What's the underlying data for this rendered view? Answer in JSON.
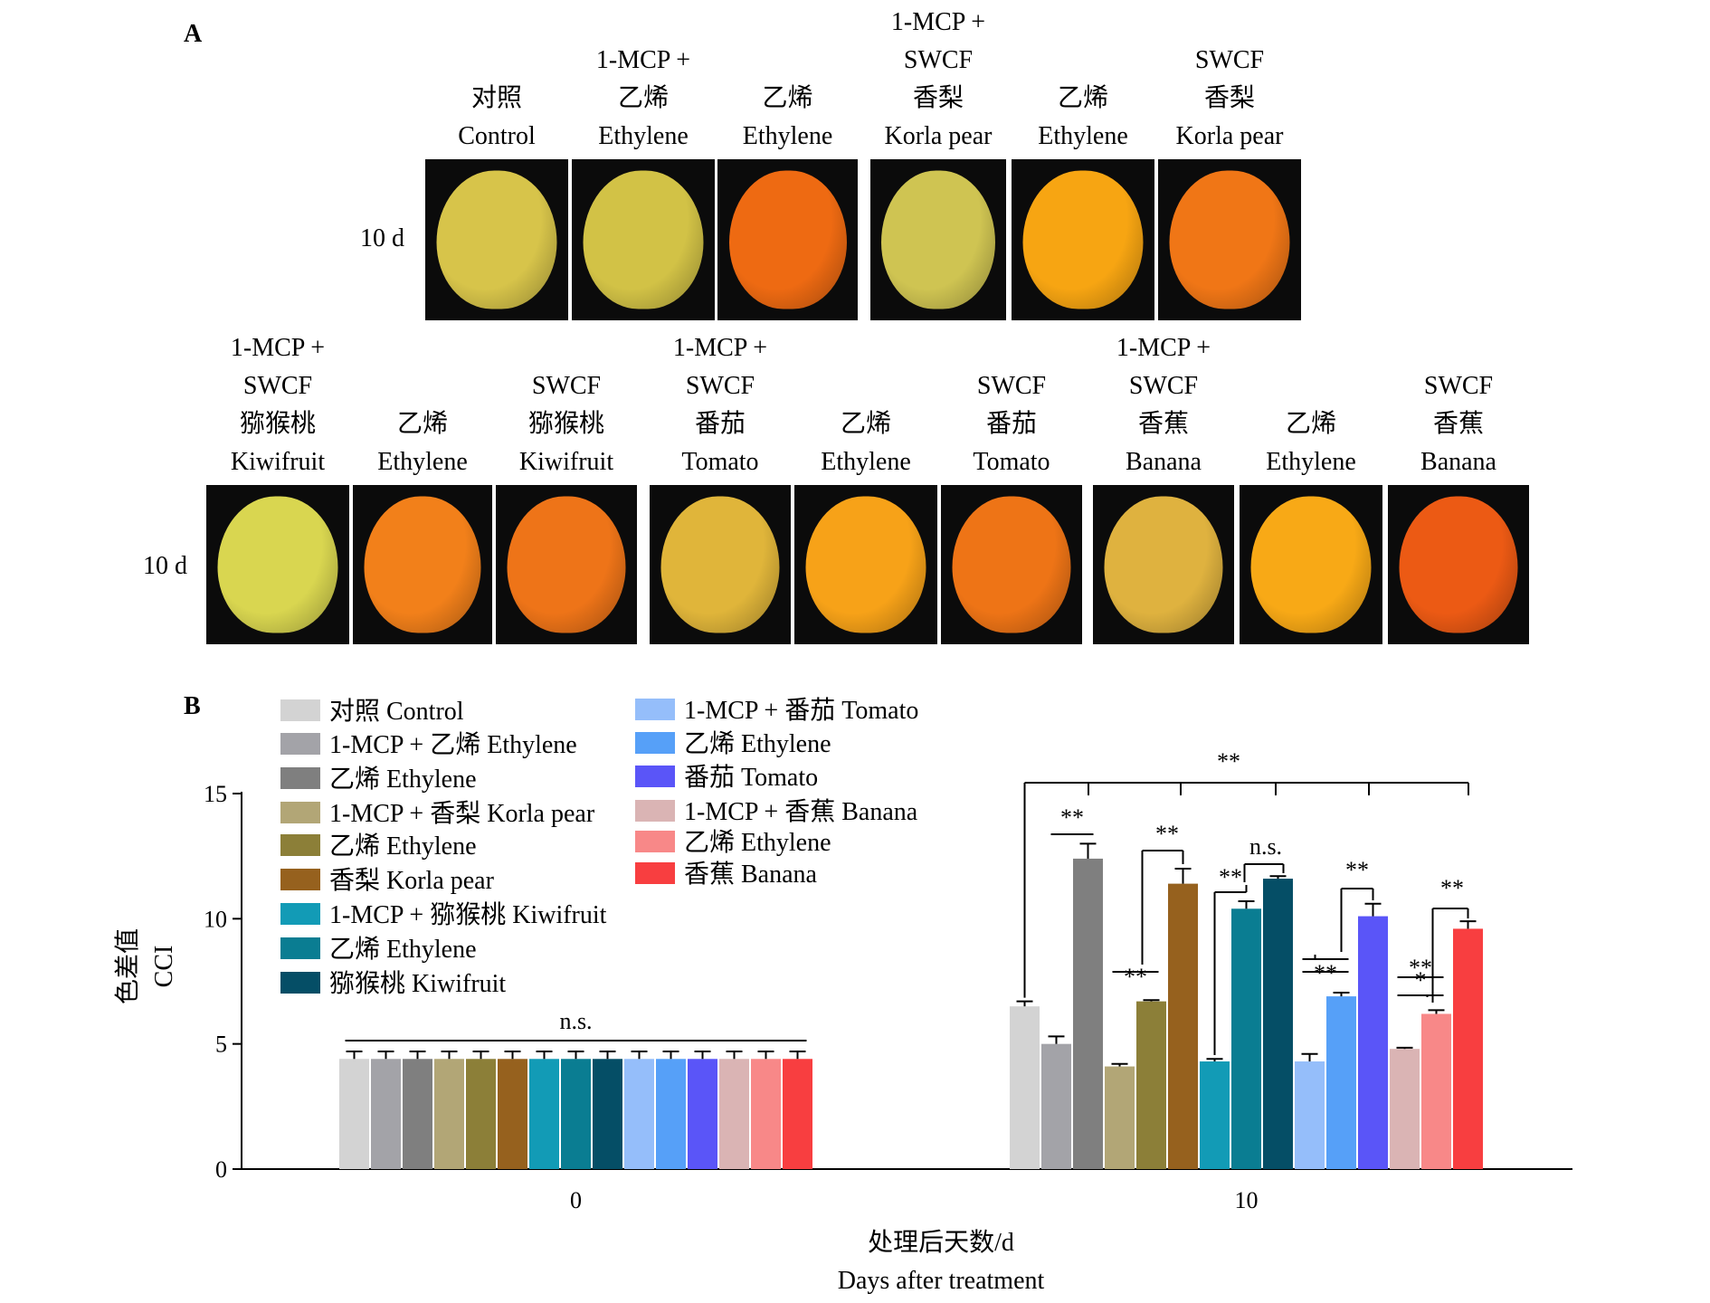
{
  "panel_a": {
    "letter": "A",
    "row1": {
      "day_label": "10 d",
      "photos": [
        {
          "lines": [
            "对照",
            "Control"
          ],
          "fruit_color": "#d7c44a"
        },
        {
          "lines": [
            "1-MCP +",
            "乙烯",
            "Ethylene"
          ],
          "fruit_color": "#d2c246"
        },
        {
          "lines": [
            "乙烯",
            "Ethylene"
          ],
          "fruit_color": "#ee6a12"
        },
        {
          "lines": [
            "1-MCP +",
            "SWCF",
            "香梨",
            "Korla pear"
          ],
          "fruit_color": "#cfc452"
        },
        {
          "lines": [
            "乙烯",
            "Ethylene"
          ],
          "fruit_color": "#f7a512"
        },
        {
          "lines": [
            "SWCF",
            "香梨",
            "Korla pear"
          ],
          "fruit_color": "#f07616"
        }
      ]
    },
    "row2": {
      "day_label": "10 d",
      "photos": [
        {
          "lines": [
            "1-MCP +",
            "SWCF",
            "猕猴桃",
            "Kiwifruit"
          ],
          "fruit_color": "#d9d650"
        },
        {
          "lines": [
            "乙烯",
            "Ethylene"
          ],
          "fruit_color": "#f2801a"
        },
        {
          "lines": [
            "SWCF",
            "猕猴桃",
            "Kiwifruit"
          ],
          "fruit_color": "#ee7418"
        },
        {
          "lines": [
            "1-MCP +",
            "SWCF",
            "番茄",
            "Tomato"
          ],
          "fruit_color": "#e0b53a"
        },
        {
          "lines": [
            "乙烯",
            "Ethylene"
          ],
          "fruit_color": "#f7a218"
        },
        {
          "lines": [
            "SWCF",
            "番茄",
            "Tomato"
          ],
          "fruit_color": "#ee7416"
        },
        {
          "lines": [
            "1-MCP +",
            "SWCF",
            "香蕉",
            "Banana"
          ],
          "fruit_color": "#dfb23f"
        },
        {
          "lines": [
            "乙烯",
            "Ethylene"
          ],
          "fruit_color": "#f8a916"
        },
        {
          "lines": [
            "SWCF",
            "香蕉",
            "Banana"
          ],
          "fruit_color": "#ec5a14"
        }
      ]
    }
  },
  "panel_b": {
    "letter": "B"
  },
  "chart_data": {
    "type": "bar",
    "x_categories": [
      "0",
      "10"
    ],
    "xlabel": [
      "处理后天数/d",
      "Days after treatment"
    ],
    "ylabel": [
      "色差值",
      "CCI"
    ],
    "ylim": [
      0,
      15
    ],
    "yticks": [
      0,
      5,
      10,
      15
    ],
    "legend_columns": [
      [
        {
          "name": "对照 Control",
          "color": "#d3d3d3"
        },
        {
          "name": "1-MCP + 乙烯 Ethylene",
          "color": "#a3a3a8"
        },
        {
          "name": "乙烯 Ethylene",
          "color": "#7f7f7f"
        },
        {
          "name": "1-MCP + 香梨 Korla pear",
          "color": "#b2a676"
        },
        {
          "name": "乙烯 Ethylene",
          "color": "#8c7f38"
        },
        {
          "name": "香梨 Korla pear",
          "color": "#96611e"
        },
        {
          "name": "1-MCP + 猕猴桃 Kiwifruit",
          "color": "#129bb6"
        },
        {
          "name": "乙烯 Ethylene",
          "color": "#0a7d92"
        },
        {
          "name": "猕猴桃 Kiwifruit",
          "color": "#054e66"
        }
      ],
      [
        {
          "name": "1-MCP + 番茄 Tomato",
          "color": "#95befa"
        },
        {
          "name": "乙烯 Ethylene",
          "color": "#56a0f8"
        },
        {
          "name": "番茄 Tomato",
          "color": "#5a55f8"
        },
        {
          "name": "1-MCP + 香蕉 Banana",
          "color": "#dab4b4"
        },
        {
          "name": "乙烯 Ethylene",
          "color": "#f88888"
        },
        {
          "name": "香蕉 Banana",
          "color": "#f83e40"
        }
      ]
    ],
    "series_colors": [
      "#d3d3d3",
      "#a3a3a8",
      "#7f7f7f",
      "#b2a676",
      "#8c7f38",
      "#96611e",
      "#129bb6",
      "#0a7d92",
      "#054e66",
      "#95befa",
      "#56a0f8",
      "#5a55f8",
      "#dab4b4",
      "#f88888",
      "#f83e40"
    ],
    "day0": {
      "values": [
        4.4,
        4.4,
        4.4,
        4.4,
        4.4,
        4.4,
        4.4,
        4.4,
        4.4,
        4.4,
        4.4,
        4.4,
        4.4,
        4.4,
        4.4
      ],
      "errors": [
        0.3,
        0.3,
        0.3,
        0.3,
        0.3,
        0.3,
        0.3,
        0.3,
        0.3,
        0.3,
        0.3,
        0.3,
        0.3,
        0.3,
        0.3
      ],
      "annotation": "n.s."
    },
    "day10": {
      "values": [
        6.5,
        5.0,
        12.4,
        4.1,
        6.7,
        11.4,
        4.3,
        10.4,
        11.6,
        4.3,
        6.9,
        10.1,
        4.8,
        6.2,
        9.6
      ],
      "errors": [
        0.2,
        0.3,
        0.6,
        0.1,
        0.05,
        0.6,
        0.1,
        0.3,
        0.1,
        0.3,
        0.15,
        0.5,
        0.05,
        0.15,
        0.3
      ],
      "annotations": [
        "**",
        "**",
        "**",
        "**",
        "n.s.",
        "**",
        "**",
        "**",
        "*",
        "**",
        "**"
      ]
    }
  }
}
